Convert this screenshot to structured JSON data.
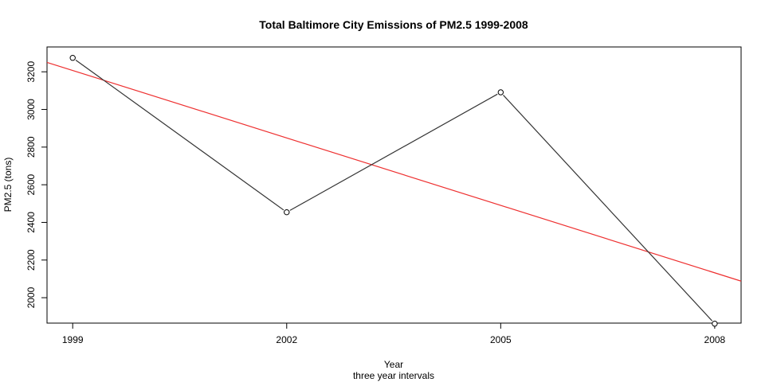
{
  "chart_data": {
    "type": "line",
    "title": "Total Baltimore City Emissions of PM2.5 1999-2008",
    "xlabel": "Year",
    "xlabel_sub": "three year intervals",
    "ylabel": "PM2.5 (tons)",
    "x": [
      1999,
      2002,
      2005,
      2008
    ],
    "x_tick_labels": [
      "1999",
      "2002",
      "2005",
      "2008"
    ],
    "y_ticks": [
      2000,
      2200,
      2400,
      2600,
      2800,
      3000,
      3200
    ],
    "y_tick_labels": [
      "2000",
      "2200",
      "2400",
      "2600",
      "2800",
      "3000",
      "3200"
    ],
    "xlim": [
      1998.64,
      2008.37
    ],
    "ylim": [
      1865,
      3332
    ],
    "series": [
      {
        "values": [
          3274,
          2454,
          3091,
          1862
        ],
        "color": "#333333",
        "markers": "open-circle"
      }
    ],
    "trendline": {
      "points": [
        [
          1998.64,
          3250
        ],
        [
          2008.37,
          2088
        ]
      ],
      "color": "#ee3030"
    },
    "grid": false,
    "legend": "none"
  }
}
